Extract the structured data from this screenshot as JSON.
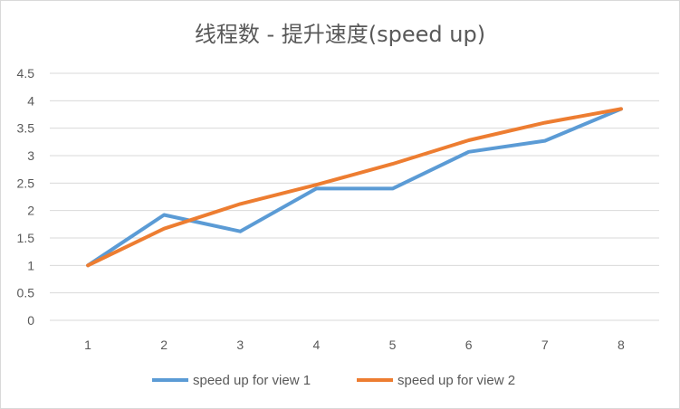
{
  "chart_data": {
    "type": "line",
    "title": "线程数 - 提升速度(speed up)",
    "xlabel": "",
    "ylabel": "",
    "x": [
      1,
      2,
      3,
      4,
      5,
      6,
      7,
      8
    ],
    "ylim": [
      0,
      4.5
    ],
    "y_ticks": [
      "0",
      "0.5",
      "1",
      "1.5",
      "2",
      "2.5",
      "3",
      "3.5",
      "4",
      "4.5"
    ],
    "y_tick_values": [
      0,
      0.5,
      1,
      1.5,
      2,
      2.5,
      3,
      3.5,
      4,
      4.5
    ],
    "x_ticks": [
      "1",
      "2",
      "3",
      "4",
      "5",
      "6",
      "7",
      "8"
    ],
    "grid": true,
    "legend_position": "bottom",
    "series": [
      {
        "name": "speed up for view 1",
        "color": "#5b9bd5",
        "values": [
          1.0,
          1.92,
          1.62,
          2.4,
          2.4,
          3.07,
          3.27,
          3.85
        ]
      },
      {
        "name": "speed up for view 2",
        "color": "#ed7d31",
        "values": [
          1.0,
          1.67,
          2.12,
          2.47,
          2.85,
          3.28,
          3.6,
          3.85
        ]
      }
    ]
  }
}
